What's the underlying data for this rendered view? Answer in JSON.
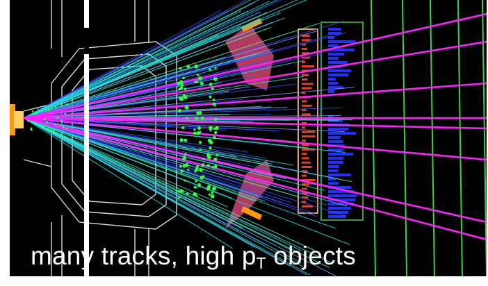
{
  "caption": {
    "prefix": "many tracks, high p",
    "subscript": "T",
    "suffix": " objects"
  },
  "colors": {
    "background": "#000000",
    "detector_outline": "#d9d9d9",
    "muon_chamber": "#b23a5e",
    "calorimeter_em": "#e84020",
    "calorimeter_hadronic": "#2030ff",
    "muon_planes": "#39d33a",
    "track_magenta": "#ff20ff",
    "track_cyan": "#20e0e0",
    "track_blue": "#3050ff",
    "vertex_green": "#30ff40",
    "beam_end": "#ff9a10",
    "caption_text": "#ffffff"
  }
}
